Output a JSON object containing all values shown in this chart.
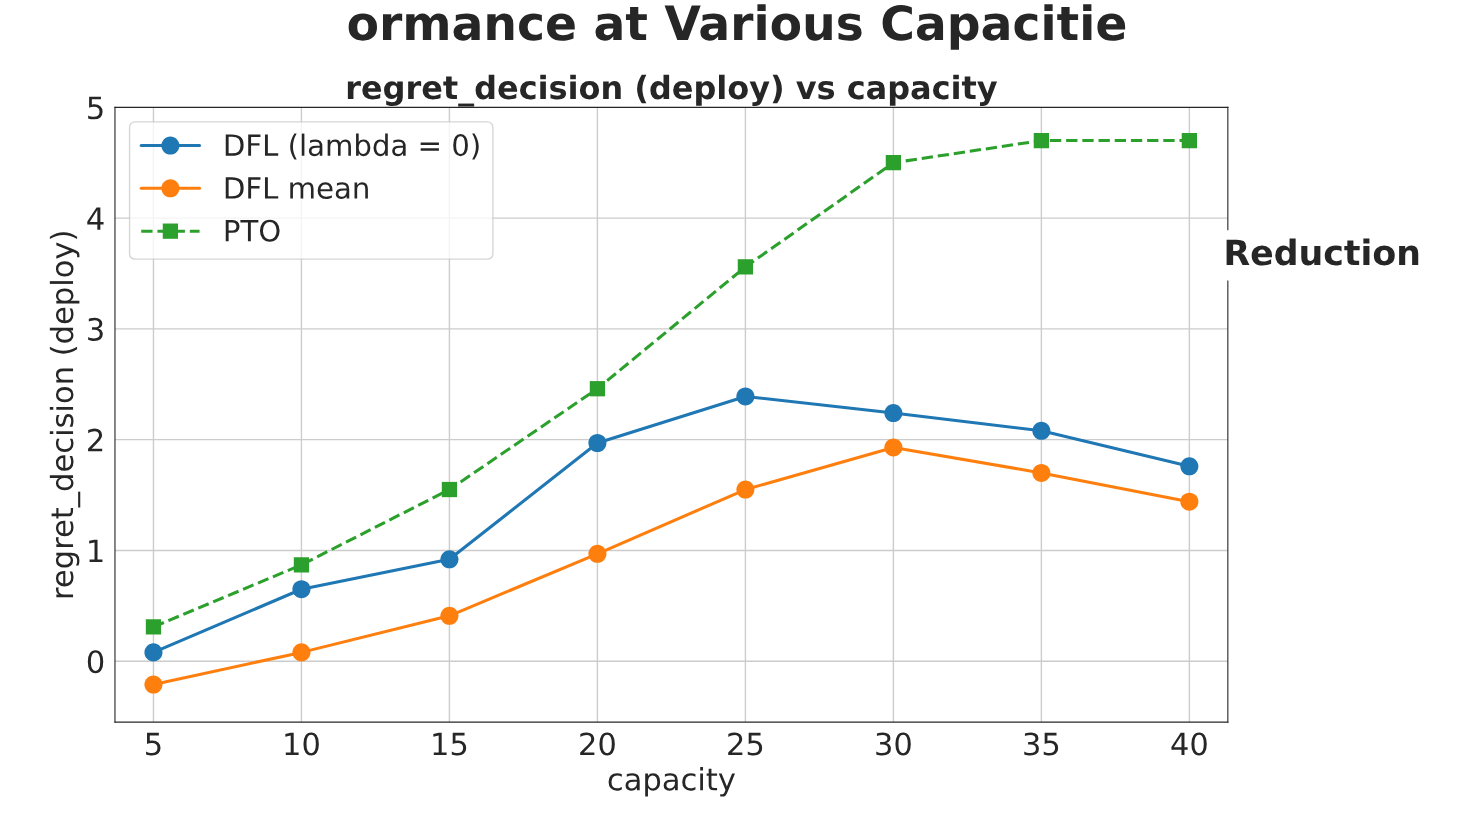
{
  "chart_data": {
    "type": "line",
    "title": "regret_decision (deploy) vs capacity",
    "xlabel": "capacity",
    "ylabel": "regret_decision (deploy)",
    "annotations": [
      "ormance at Various Capacitie",
      "Reduction"
    ],
    "x": [
      5,
      10,
      15,
      20,
      25,
      30,
      35,
      40
    ],
    "series": [
      {
        "name": "DFL (lambda = 0)",
        "color": "#1f77b4",
        "marker": "circle",
        "line_style": "solid",
        "values": [
          0.08,
          0.65,
          0.92,
          1.97,
          2.39,
          2.24,
          2.08,
          1.76
        ]
      },
      {
        "name": "DFL mean",
        "color": "#ff7f0e",
        "marker": "circle",
        "line_style": "solid",
        "values": [
          -0.21,
          0.08,
          0.41,
          0.97,
          1.55,
          1.93,
          1.7,
          1.44
        ]
      },
      {
        "name": "PTO",
        "color": "#2ca02c",
        "marker": "square",
        "line_style": "dashed",
        "values": [
          0.31,
          0.87,
          1.55,
          2.46,
          3.56,
          4.5,
          4.7,
          4.7
        ]
      }
    ],
    "xlim": [
      3.7,
      41.3
    ],
    "xticks": [
      5,
      10,
      15,
      20,
      25,
      30,
      35,
      40
    ],
    "ylim": [
      -0.55,
      5
    ],
    "yticks": [
      0,
      1,
      2,
      3,
      4,
      5
    ],
    "grid": true,
    "legend": "top left"
  }
}
